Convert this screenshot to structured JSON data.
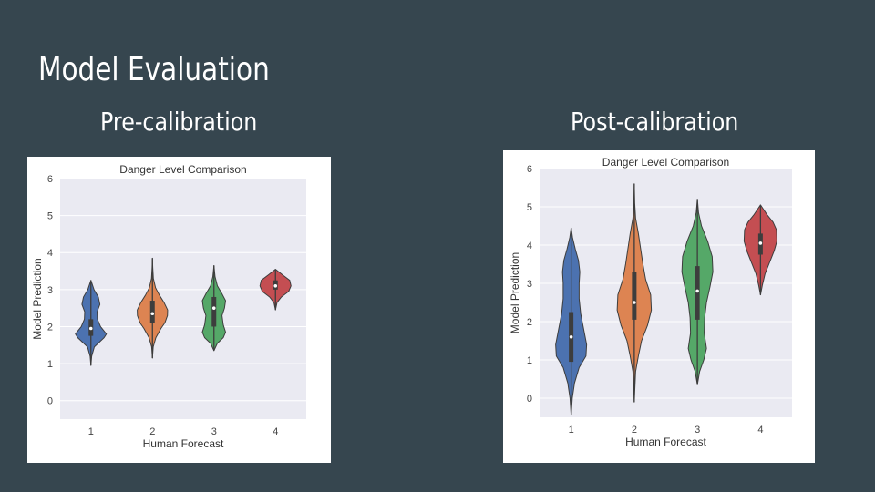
{
  "slide": {
    "title": "Model Evaluation",
    "left_subtitle": "Pre-calibration",
    "right_subtitle": "Post-calibration"
  },
  "colors": {
    "background": "#36464f",
    "plot_bg": "#eaeaf2",
    "series": [
      "#4c72b0",
      "#dd8452",
      "#55a868",
      "#c44e52"
    ]
  },
  "chart_data": [
    {
      "type": "violin",
      "title": "Danger Level Comparison",
      "xlabel": "Human Forecast",
      "ylabel": "Model Prediction",
      "categories": [
        "1",
        "2",
        "3",
        "4"
      ],
      "ylim": [
        -0.5,
        6
      ],
      "yticks": [
        0,
        1,
        2,
        3,
        4,
        5,
        6
      ],
      "grid": true,
      "violins": [
        {
          "category": "1",
          "min": 0.95,
          "max": 3.25,
          "q1": 1.75,
          "median": 1.95,
          "q3": 2.2,
          "profile": [
            [
              0.95,
              0.0
            ],
            [
              1.2,
              0.05
            ],
            [
              1.45,
              0.22
            ],
            [
              1.7,
              0.85
            ],
            [
              1.8,
              1.0
            ],
            [
              2.0,
              0.62
            ],
            [
              2.2,
              0.42
            ],
            [
              2.4,
              0.4
            ],
            [
              2.6,
              0.58
            ],
            [
              2.8,
              0.48
            ],
            [
              3.0,
              0.2
            ],
            [
              3.25,
              0.0
            ]
          ]
        },
        {
          "category": "2",
          "min": 1.15,
          "max": 3.85,
          "q1": 2.1,
          "median": 2.35,
          "q3": 2.7,
          "profile": [
            [
              1.15,
              0.0
            ],
            [
              1.45,
              0.05
            ],
            [
              1.7,
              0.22
            ],
            [
              1.95,
              0.55
            ],
            [
              2.1,
              0.8
            ],
            [
              2.3,
              0.97
            ],
            [
              2.45,
              0.98
            ],
            [
              2.65,
              0.75
            ],
            [
              2.85,
              0.45
            ],
            [
              3.05,
              0.2
            ],
            [
              3.3,
              0.06
            ],
            [
              3.6,
              0.02
            ],
            [
              3.85,
              0.0
            ]
          ]
        },
        {
          "category": "3",
          "min": 1.35,
          "max": 3.65,
          "q1": 2.0,
          "median": 2.5,
          "q3": 2.8,
          "profile": [
            [
              1.35,
              0.0
            ],
            [
              1.55,
              0.22
            ],
            [
              1.7,
              0.6
            ],
            [
              1.85,
              0.75
            ],
            [
              2.05,
              0.6
            ],
            [
              2.3,
              0.52
            ],
            [
              2.5,
              0.68
            ],
            [
              2.7,
              0.75
            ],
            [
              2.9,
              0.5
            ],
            [
              3.1,
              0.22
            ],
            [
              3.35,
              0.07
            ],
            [
              3.65,
              0.0
            ]
          ]
        },
        {
          "category": "4",
          "min": 2.45,
          "max": 3.55,
          "q1": 3.0,
          "median": 3.1,
          "q3": 3.25,
          "profile": [
            [
              2.45,
              0.0
            ],
            [
              2.65,
              0.1
            ],
            [
              2.8,
              0.38
            ],
            [
              2.95,
              0.85
            ],
            [
              3.1,
              1.0
            ],
            [
              3.25,
              0.92
            ],
            [
              3.4,
              0.45
            ],
            [
              3.55,
              0.0
            ]
          ]
        }
      ]
    },
    {
      "type": "violin",
      "title": "Danger Level Comparison",
      "xlabel": "Human Forecast",
      "ylabel": "Model Prediction",
      "categories": [
        "1",
        "2",
        "3",
        "4"
      ],
      "ylim": [
        -0.5,
        6
      ],
      "yticks": [
        0,
        1,
        2,
        3,
        4,
        5,
        6
      ],
      "grid": true,
      "violins": [
        {
          "category": "1",
          "min": -0.45,
          "max": 4.45,
          "q1": 0.95,
          "median": 1.6,
          "q3": 2.25,
          "profile": [
            [
              -0.45,
              0.0
            ],
            [
              0.0,
              0.05
            ],
            [
              0.4,
              0.15
            ],
            [
              0.8,
              0.35
            ],
            [
              1.1,
              0.65
            ],
            [
              1.4,
              0.68
            ],
            [
              1.8,
              0.55
            ],
            [
              2.2,
              0.42
            ],
            [
              2.6,
              0.35
            ],
            [
              3.0,
              0.35
            ],
            [
              3.3,
              0.38
            ],
            [
              3.6,
              0.32
            ],
            [
              3.9,
              0.18
            ],
            [
              4.2,
              0.06
            ],
            [
              4.45,
              0.0
            ]
          ]
        },
        {
          "category": "2",
          "min": -0.1,
          "max": 5.6,
          "q1": 2.05,
          "median": 2.5,
          "q3": 3.3,
          "profile": [
            [
              -0.1,
              0.0
            ],
            [
              0.3,
              0.03
            ],
            [
              0.7,
              0.06
            ],
            [
              1.1,
              0.18
            ],
            [
              1.5,
              0.32
            ],
            [
              1.9,
              0.58
            ],
            [
              2.3,
              0.75
            ],
            [
              2.7,
              0.72
            ],
            [
              3.1,
              0.5
            ],
            [
              3.5,
              0.38
            ],
            [
              3.9,
              0.28
            ],
            [
              4.3,
              0.18
            ],
            [
              4.7,
              0.06
            ],
            [
              5.1,
              0.02
            ],
            [
              5.6,
              0.0
            ]
          ]
        },
        {
          "category": "3",
          "min": 0.35,
          "max": 5.2,
          "q1": 2.05,
          "median": 2.8,
          "q3": 3.45,
          "profile": [
            [
              0.35,
              0.0
            ],
            [
              0.7,
              0.1
            ],
            [
              1.0,
              0.28
            ],
            [
              1.3,
              0.4
            ],
            [
              1.7,
              0.3
            ],
            [
              2.1,
              0.32
            ],
            [
              2.5,
              0.4
            ],
            [
              2.9,
              0.55
            ],
            [
              3.3,
              0.68
            ],
            [
              3.7,
              0.65
            ],
            [
              4.1,
              0.45
            ],
            [
              4.5,
              0.18
            ],
            [
              4.85,
              0.05
            ],
            [
              5.2,
              0.0
            ]
          ]
        },
        {
          "category": "4",
          "min": 2.7,
          "max": 5.05,
          "q1": 3.75,
          "median": 4.05,
          "q3": 4.3,
          "profile": [
            [
              2.7,
              0.0
            ],
            [
              2.95,
              0.08
            ],
            [
              3.25,
              0.2
            ],
            [
              3.55,
              0.4
            ],
            [
              3.85,
              0.6
            ],
            [
              4.1,
              0.72
            ],
            [
              4.4,
              0.7
            ],
            [
              4.6,
              0.55
            ],
            [
              4.8,
              0.28
            ],
            [
              5.05,
              0.0
            ]
          ]
        }
      ]
    }
  ]
}
